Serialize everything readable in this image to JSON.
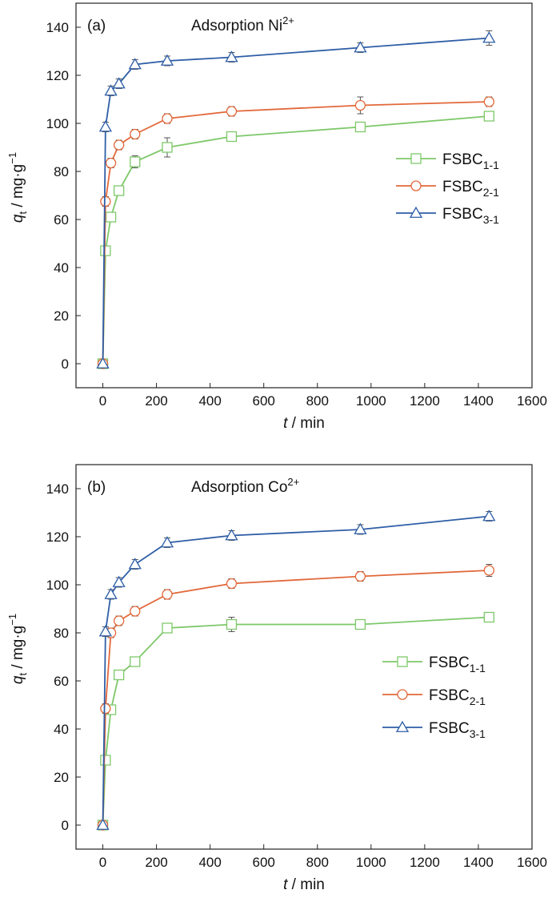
{
  "chart_data": [
    {
      "type": "line",
      "panel_label": "(a)",
      "title": "Adsorption Ni",
      "title_superscript": "2+",
      "xlabel_var": "t",
      "xlabel_unit": " / min",
      "ylabel_var": "q",
      "ylabel_sub": "t",
      "ylabel_unit": " / mg·g",
      "ylabel_unit_sup": "−1",
      "xlim": [
        -100,
        1600
      ],
      "ylim": [
        -10,
        150
      ],
      "xticks": [
        0,
        200,
        400,
        600,
        800,
        1000,
        1200,
        1400,
        1600
      ],
      "yticks": [
        0,
        20,
        40,
        60,
        80,
        100,
        120,
        140
      ],
      "legend_position": "center-right",
      "series": [
        {
          "name": "FSBC",
          "sub": "1-1",
          "color": "#7ec86a",
          "marker": "square",
          "x": [
            0,
            10,
            30,
            60,
            120,
            240,
            480,
            960,
            1440
          ],
          "y": [
            0,
            47,
            61,
            72,
            84,
            90,
            94.5,
            98.5,
            103
          ],
          "err": [
            0,
            2,
            2,
            2,
            2.5,
            4,
            2,
            2,
            2
          ]
        },
        {
          "name": "FSBC",
          "sub": "2-1",
          "color": "#e2683a",
          "marker": "circle",
          "x": [
            0,
            10,
            30,
            60,
            120,
            240,
            480,
            960,
            1440
          ],
          "y": [
            0,
            67.5,
            83.5,
            91,
            95.5,
            102,
            105,
            107.5,
            109
          ],
          "err": [
            0,
            2,
            2,
            2,
            2,
            2,
            2,
            3.5,
            2
          ]
        },
        {
          "name": "FSBC",
          "sub": "3-1",
          "color": "#2e5ea6",
          "marker": "triangle",
          "x": [
            0,
            10,
            30,
            60,
            120,
            240,
            480,
            960,
            1440
          ],
          "y": [
            0,
            98.5,
            113.5,
            116.5,
            124.5,
            126,
            127.5,
            131.5,
            135.5
          ],
          "err": [
            0,
            2,
            2,
            2,
            2,
            2,
            2,
            2,
            3
          ]
        }
      ]
    },
    {
      "type": "line",
      "panel_label": "(b)",
      "title": "Adsorption Co",
      "title_superscript": "2+",
      "xlabel_var": "t",
      "xlabel_unit": " / min",
      "ylabel_var": "q",
      "ylabel_sub": "t",
      "ylabel_unit": " / mg·g",
      "ylabel_unit_sup": "−1",
      "xlim": [
        -100,
        1600
      ],
      "ylim": [
        -10,
        150
      ],
      "xticks": [
        0,
        200,
        400,
        600,
        800,
        1000,
        1200,
        1400,
        1600
      ],
      "yticks": [
        0,
        20,
        40,
        60,
        80,
        100,
        120,
        140
      ],
      "legend_position": "lower-right",
      "series": [
        {
          "name": "FSBC",
          "sub": "1-1",
          "color": "#7ec86a",
          "marker": "square",
          "x": [
            0,
            10,
            30,
            60,
            120,
            240,
            480,
            960,
            1440
          ],
          "y": [
            0,
            27,
            48,
            62.5,
            68,
            82,
            83.5,
            83.5,
            86.5
          ],
          "err": [
            0,
            2,
            2,
            2,
            2,
            2,
            3,
            2,
            2
          ]
        },
        {
          "name": "FSBC",
          "sub": "2-1",
          "color": "#e2683a",
          "marker": "circle",
          "x": [
            0,
            10,
            30,
            60,
            120,
            240,
            480,
            960,
            1440
          ],
          "y": [
            0,
            48.5,
            80,
            85,
            89,
            96,
            100.5,
            103.5,
            106
          ],
          "err": [
            0,
            2,
            2,
            2,
            2,
            2,
            2,
            2,
            2.5
          ]
        },
        {
          "name": "FSBC",
          "sub": "3-1",
          "color": "#2e5ea6",
          "marker": "triangle",
          "x": [
            0,
            10,
            30,
            60,
            120,
            240,
            480,
            960,
            1440
          ],
          "y": [
            0,
            80.5,
            96,
            101,
            108.5,
            117.5,
            120.5,
            123,
            128.5
          ],
          "err": [
            0,
            2,
            2,
            2,
            2,
            2,
            2,
            2,
            2
          ]
        }
      ]
    }
  ]
}
